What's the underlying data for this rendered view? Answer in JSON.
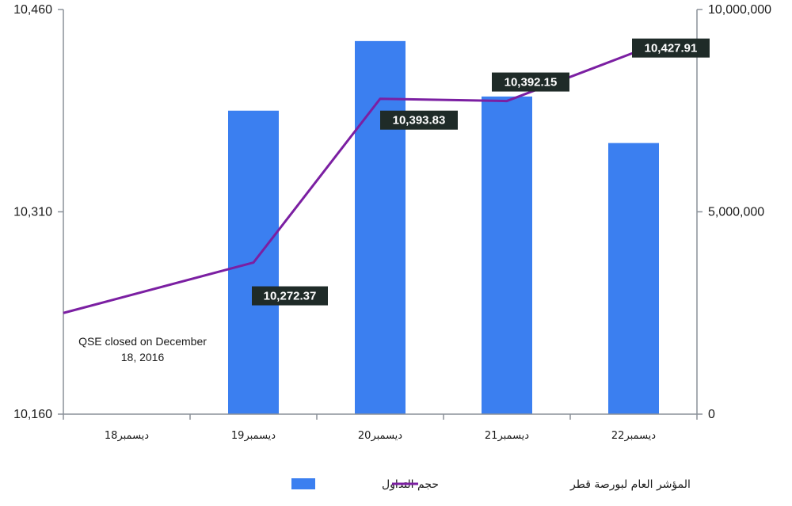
{
  "chart_data": {
    "type": "bar+line",
    "categories": [
      "ديسمبر18",
      "ديسمبر19",
      "ديسمبر20",
      "ديسمبر21",
      "ديسمبر22"
    ],
    "bar_series": {
      "name": "حجم التداول",
      "axis": "right",
      "color": "#3b7ff0",
      "values": [
        null,
        7500000,
        9220000,
        7850000,
        6700000
      ]
    },
    "line_series": {
      "name": "المؤشر العام لبورصة قطر",
      "axis": "left",
      "color": "#7b1fa2",
      "values": [
        10235.0,
        10272.37,
        10393.83,
        10392.15,
        10427.91
      ],
      "data_labels": [
        "",
        "10,272.37",
        "10,393.83",
        "10,392.15",
        "10,427.91"
      ]
    },
    "y_left": {
      "range": [
        10160,
        10460
      ],
      "ticks": [
        "10,160",
        "10,310",
        "10,460"
      ],
      "tick_values": [
        10160,
        10310,
        10460
      ]
    },
    "y_right": {
      "range": [
        0,
        10000000
      ],
      "ticks": [
        "0",
        "5,000,000",
        "10,000,000"
      ],
      "tick_values": [
        0,
        5000000,
        10000000
      ]
    },
    "annotation": "QSE closed on December 18, 2016",
    "annotation_lines": [
      "QSE closed on December",
      "18, 2016"
    ],
    "legend": "bottom",
    "grid": false
  }
}
